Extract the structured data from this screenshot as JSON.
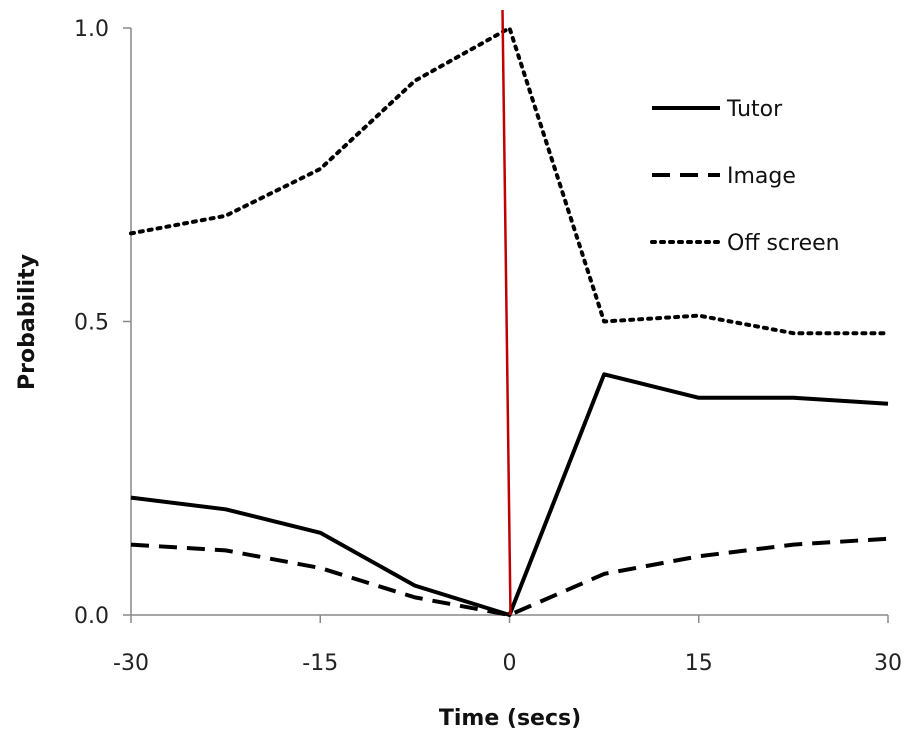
{
  "chart_data": {
    "type": "line",
    "xlabel": "Time (secs)",
    "ylabel": "Probability",
    "xlim": [
      -30,
      30
    ],
    "ylim": [
      0,
      1
    ],
    "x_ticks": [
      -30,
      -15,
      0,
      15,
      30
    ],
    "x_tick_labels": [
      "-30",
      "-15",
      "0",
      "15",
      "30"
    ],
    "y_ticks": [
      0,
      0.5,
      1
    ],
    "y_tick_labels": [
      "0.0",
      "0.5",
      "1.0"
    ],
    "grid": false,
    "legend_position": "top-right",
    "series": [
      {
        "name": "Tutor",
        "style": "solid",
        "color": "#000000",
        "x": [
          -30,
          -22.5,
          -15,
          -7.5,
          0,
          7.5,
          15,
          22.5,
          30
        ],
        "values": [
          0.2,
          0.18,
          0.14,
          0.05,
          0.0,
          0.41,
          0.37,
          0.37,
          0.36
        ]
      },
      {
        "name": "Image",
        "style": "dashed",
        "color": "#000000",
        "x": [
          -30,
          -22.5,
          -15,
          -7.5,
          0,
          7.5,
          15,
          22.5,
          30
        ],
        "values": [
          0.12,
          0.11,
          0.08,
          0.03,
          0.0,
          0.07,
          0.1,
          0.12,
          0.13
        ]
      },
      {
        "name": "Off screen",
        "style": "dotted",
        "color": "#000000",
        "x": [
          -30,
          -22.5,
          -15,
          -7.5,
          0,
          7.5,
          15,
          22.5,
          30
        ],
        "values": [
          0.65,
          0.68,
          0.76,
          0.91,
          1.0,
          0.5,
          0.51,
          0.48,
          0.48
        ]
      }
    ],
    "annotations": [
      {
        "type": "vertical-line",
        "color": "#c00000",
        "x_top": 0,
        "x_bottom": 0,
        "y_top": 1.0,
        "y_bottom": 0.0
      }
    ]
  }
}
